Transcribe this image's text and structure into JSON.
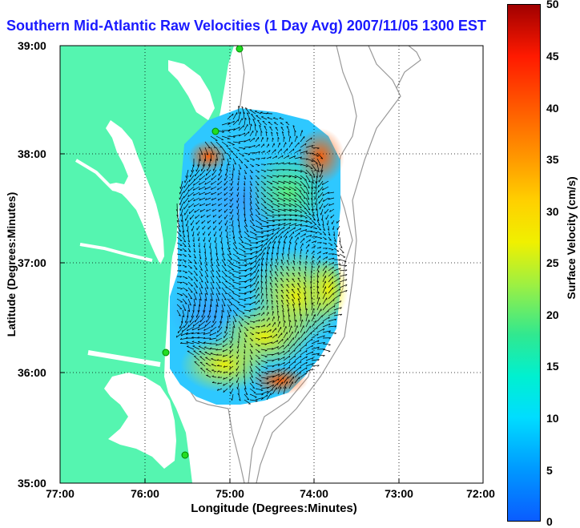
{
  "title": "Southern Mid-Atlantic Raw Velocities (1 Day Avg) 2007/11/05 1300 EST",
  "x_axis": {
    "label": "Longitude (Degrees:Minutes)",
    "ticks": [
      "77:00",
      "76:00",
      "75:00",
      "74:00",
      "73:00",
      "72:00"
    ]
  },
  "y_axis": {
    "label": "Latitude (Degrees:Minutes)",
    "ticks": [
      "39:00",
      "38:00",
      "37:00",
      "36:00",
      "35:00"
    ]
  },
  "colorbar": {
    "label": "Surface Velocity (cm/s)",
    "ticks": [
      "50",
      "45",
      "40",
      "35",
      "30",
      "25",
      "20",
      "15",
      "10",
      "5",
      "0"
    ],
    "range": [
      0,
      50
    ]
  },
  "colors": {
    "land": "#55f5b0",
    "water": "#ffffff",
    "title": "#1a1aff",
    "station": "#22dd22",
    "bathymetry": "#999999"
  }
}
